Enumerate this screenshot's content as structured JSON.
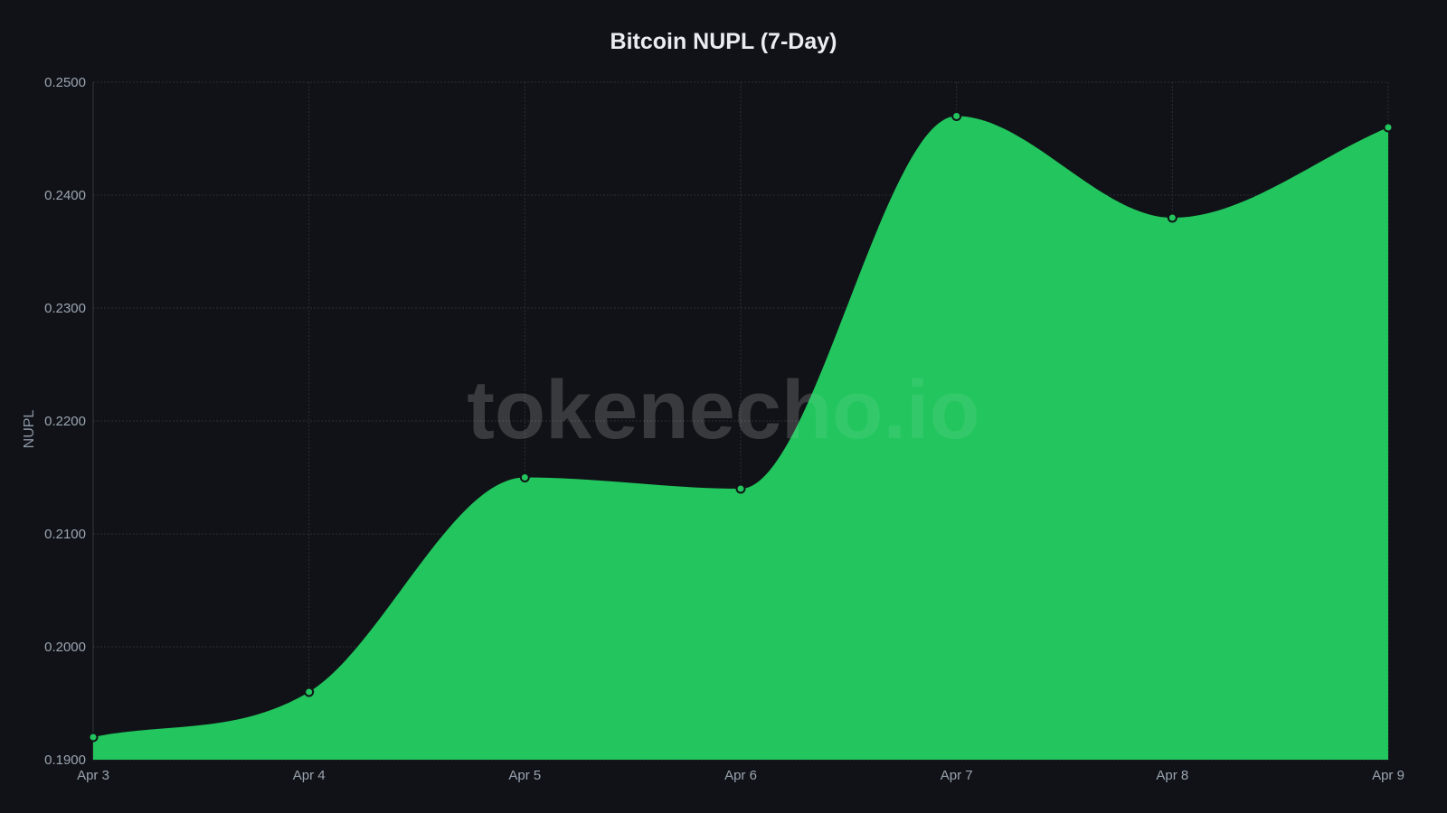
{
  "title": "Bitcoin NUPL (7-Day)",
  "watermark": "tokenecho.io",
  "colors": {
    "background": "#111217",
    "area_fill": "#22c55e",
    "marker_stroke": "#111217",
    "grid": "#2a2f36",
    "tick_text": "#9aa5b1"
  },
  "chart_data": {
    "type": "area",
    "title": "Bitcoin NUPL (7-Day)",
    "xlabel": "",
    "ylabel": "NUPL",
    "categories": [
      "Apr 3",
      "Apr 4",
      "Apr 5",
      "Apr 6",
      "Apr 7",
      "Apr 8",
      "Apr 9"
    ],
    "series": [
      {
        "name": "NUPL",
        "values": [
          0.192,
          0.196,
          0.215,
          0.214,
          0.247,
          0.238,
          0.246
        ]
      }
    ],
    "ylim": [
      0.19,
      0.25
    ],
    "yticks": [
      "0.1900",
      "0.2000",
      "0.2100",
      "0.2200",
      "0.2300",
      "0.2400",
      "0.2500"
    ],
    "grid": true,
    "legend": "none",
    "smooth": true
  }
}
